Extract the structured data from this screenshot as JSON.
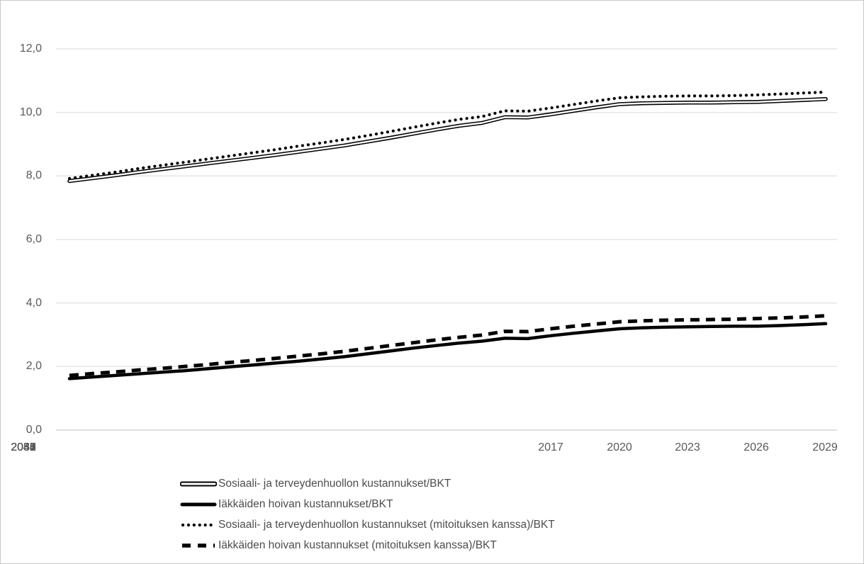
{
  "chart_data": {
    "type": "line",
    "title": "",
    "xlabel": "",
    "ylabel": "",
    "ylim": [
      0,
      12
    ],
    "grid": "horizontal",
    "legend_position": "bottom-left",
    "x": [
      2017,
      2018,
      2019,
      2020,
      2021,
      2022,
      2023,
      2024,
      2025,
      2026,
      2027,
      2028,
      2029,
      2030,
      2031,
      2032,
      2033,
      2034,
      2035,
      2036,
      2037,
      2038,
      2039,
      2040,
      2041,
      2042,
      2043,
      2044,
      2045,
      2046,
      2047,
      2048,
      2049,
      2050
    ],
    "x_tick_labels": [
      "2017",
      "2020",
      "2023",
      "2026",
      "2029",
      "2032",
      "2035",
      "2038",
      "2041",
      "2044",
      "2047",
      "2050"
    ],
    "y_ticks": [
      12,
      10,
      8,
      6,
      4,
      2,
      0
    ],
    "y_tick_labels": [
      "12,0",
      "10,0",
      "8,0",
      "6,0",
      "4,0",
      "2,0",
      "0,0"
    ],
    "series": [
      {
        "name": "Sosiaali- ja terveydenhuollon kustannukset/BKT",
        "style": "double-line",
        "color": "#000000",
        "values": [
          7.84,
          7.93,
          8.02,
          8.12,
          8.21,
          8.3,
          8.39,
          8.48,
          8.57,
          8.66,
          8.76,
          8.86,
          8.96,
          9.08,
          9.2,
          9.33,
          9.46,
          9.58,
          9.67,
          9.85,
          9.84,
          9.94,
          10.05,
          10.16,
          10.26,
          10.29,
          10.3,
          10.31,
          10.31,
          10.32,
          10.33,
          10.36,
          10.39,
          10.42
        ]
      },
      {
        "name": "Iäkkäiden hoivan kustannukset/BKT",
        "style": "solid",
        "color": "#000000",
        "values": [
          1.62,
          1.67,
          1.72,
          1.77,
          1.82,
          1.87,
          1.93,
          1.99,
          2.05,
          2.11,
          2.17,
          2.24,
          2.31,
          2.4,
          2.49,
          2.58,
          2.66,
          2.74,
          2.8,
          2.89,
          2.88,
          2.97,
          3.05,
          3.12,
          3.19,
          3.22,
          3.24,
          3.25,
          3.26,
          3.27,
          3.27,
          3.29,
          3.32,
          3.35
        ]
      },
      {
        "name": "Sosiaali- ja terveydenhuollon kustannukset (mitoituksen kanssa)/BKT",
        "style": "dotted",
        "color": "#000000",
        "values": [
          7.92,
          8.02,
          8.12,
          8.23,
          8.33,
          8.43,
          8.53,
          8.63,
          8.73,
          8.83,
          8.94,
          9.04,
          9.15,
          9.27,
          9.4,
          9.53,
          9.66,
          9.78,
          9.87,
          10.05,
          10.04,
          10.14,
          10.25,
          10.36,
          10.46,
          10.49,
          10.51,
          10.52,
          10.52,
          10.53,
          10.55,
          10.58,
          10.61,
          10.64
        ]
      },
      {
        "name": "Iäkkäiden hoivan kustannukset (mitoituksen kanssa)/BKT",
        "style": "dashed",
        "color": "#000000",
        "values": [
          1.72,
          1.78,
          1.83,
          1.89,
          1.94,
          2.0,
          2.06,
          2.13,
          2.19,
          2.26,
          2.33,
          2.4,
          2.48,
          2.57,
          2.66,
          2.75,
          2.84,
          2.92,
          2.99,
          3.11,
          3.1,
          3.19,
          3.27,
          3.34,
          3.41,
          3.44,
          3.46,
          3.47,
          3.48,
          3.49,
          3.51,
          3.53,
          3.56,
          3.6
        ]
      }
    ],
    "colors": {
      "gridline": "#D9D9D9",
      "axis_line": "#BFBFBF",
      "tick_text": "#595959",
      "legend_text": "#4d4d4d",
      "line": "#000000",
      "background": "#FFFFFF"
    }
  }
}
